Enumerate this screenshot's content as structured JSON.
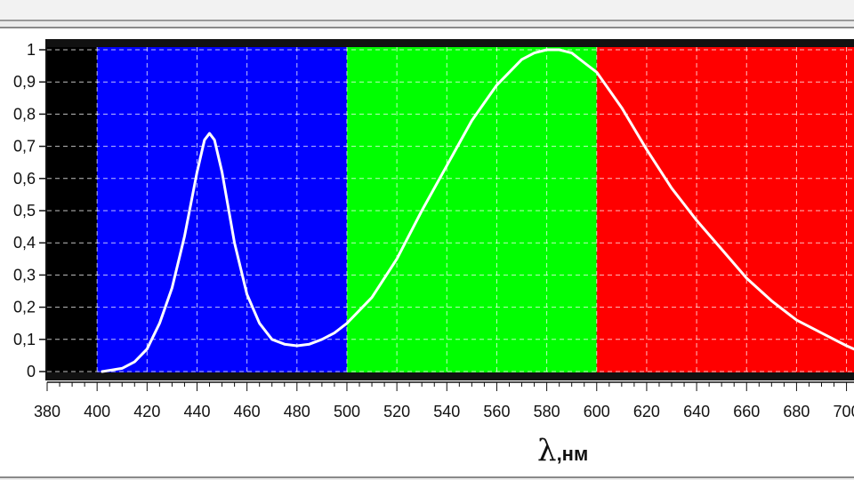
{
  "chart_data": {
    "type": "line",
    "title": "",
    "xlabel": "λ,нм",
    "ylabel": "",
    "xlim": [
      380,
      703
    ],
    "ylim": [
      0,
      1.02
    ],
    "grid": true,
    "x_ticks": [
      "380",
      "400",
      "420",
      "440",
      "460",
      "480",
      "500",
      "520",
      "540",
      "560",
      "580",
      "600",
      "620",
      "640",
      "660",
      "680",
      "700"
    ],
    "y_ticks": [
      "0",
      "0,1",
      "0,2",
      "0,3",
      "0,4",
      "0,5",
      "0,6",
      "0,7",
      "0,8",
      "0,9",
      "1"
    ],
    "bands": [
      {
        "from": 380,
        "to": 400,
        "color": "#000000"
      },
      {
        "from": 400,
        "to": 500,
        "color": "#0000ff"
      },
      {
        "from": 500,
        "to": 600,
        "color": "#00ff00"
      },
      {
        "from": 600,
        "to": 703,
        "color": "#ff0000"
      }
    ],
    "line_color": "#ffffff",
    "series": [
      {
        "x": [
          402,
          410,
          415,
          420,
          425,
          430,
          435,
          440,
          443,
          445,
          447,
          450,
          455,
          460,
          465,
          470,
          475,
          480,
          485,
          490,
          495,
          500,
          510,
          520,
          530,
          540,
          550,
          560,
          570,
          575,
          580,
          585,
          590,
          595,
          600,
          610,
          620,
          630,
          640,
          650,
          660,
          670,
          680,
          690,
          700,
          703
        ],
        "values": [
          0.0,
          0.01,
          0.03,
          0.07,
          0.15,
          0.26,
          0.42,
          0.62,
          0.72,
          0.74,
          0.72,
          0.62,
          0.4,
          0.24,
          0.15,
          0.1,
          0.085,
          0.08,
          0.085,
          0.1,
          0.12,
          0.15,
          0.23,
          0.35,
          0.5,
          0.64,
          0.78,
          0.89,
          0.97,
          0.99,
          1.0,
          1.0,
          0.99,
          0.96,
          0.93,
          0.82,
          0.69,
          0.57,
          0.47,
          0.38,
          0.29,
          0.22,
          0.16,
          0.12,
          0.08,
          0.07
        ]
      }
    ]
  }
}
